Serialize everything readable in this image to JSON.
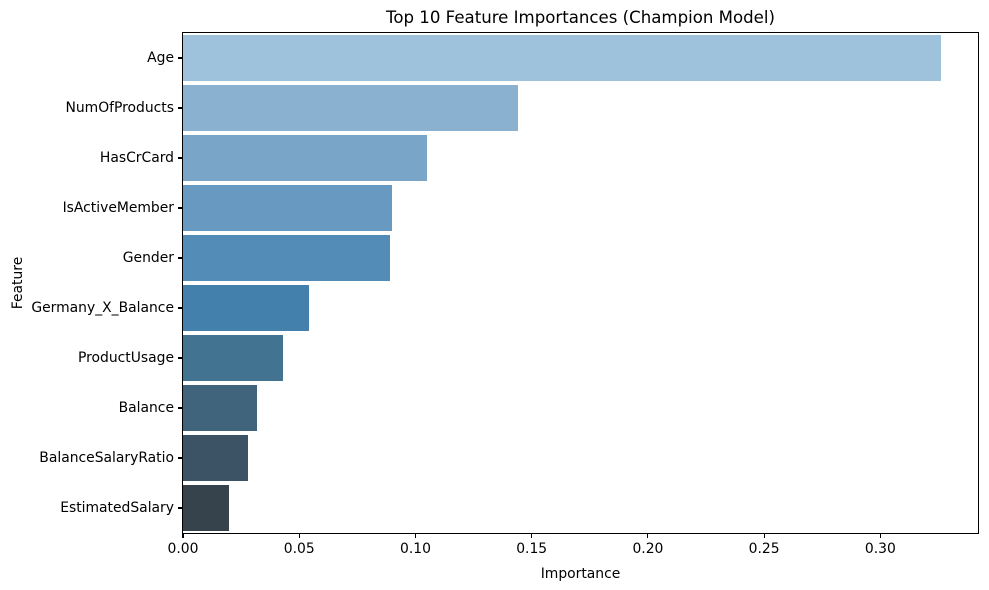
{
  "chart_data": {
    "type": "bar",
    "orientation": "horizontal",
    "title": "Top 10 Feature Importances (Champion Model)",
    "xlabel": "Importance",
    "ylabel": "Feature",
    "categories": [
      "Age",
      "NumOfProducts",
      "HasCrCard",
      "IsActiveMember",
      "Gender",
      "Germany_X_Balance",
      "ProductUsage",
      "Balance",
      "BalanceSalaryRatio",
      "EstimatedSalary"
    ],
    "values": [
      0.326,
      0.144,
      0.105,
      0.09,
      0.089,
      0.054,
      0.043,
      0.032,
      0.028,
      0.02
    ],
    "bar_colors": [
      "#9fc2dc",
      "#8ab1d0",
      "#79a5c8",
      "#689ac1",
      "#548cb8",
      "#4380ac",
      "#427491",
      "#3f647b",
      "#3b5365",
      "#37434c"
    ],
    "xtick_labels": [
      "0.00",
      "0.05",
      "0.10",
      "0.15",
      "0.20",
      "0.25",
      "0.30"
    ],
    "xtick_values": [
      0.0,
      0.05,
      0.1,
      0.15,
      0.2,
      0.25,
      0.3
    ],
    "xlim": [
      0,
      0.342
    ],
    "grid": false,
    "legend": null,
    "palette_name": "Blues_d",
    "spine_color": "#000000"
  }
}
